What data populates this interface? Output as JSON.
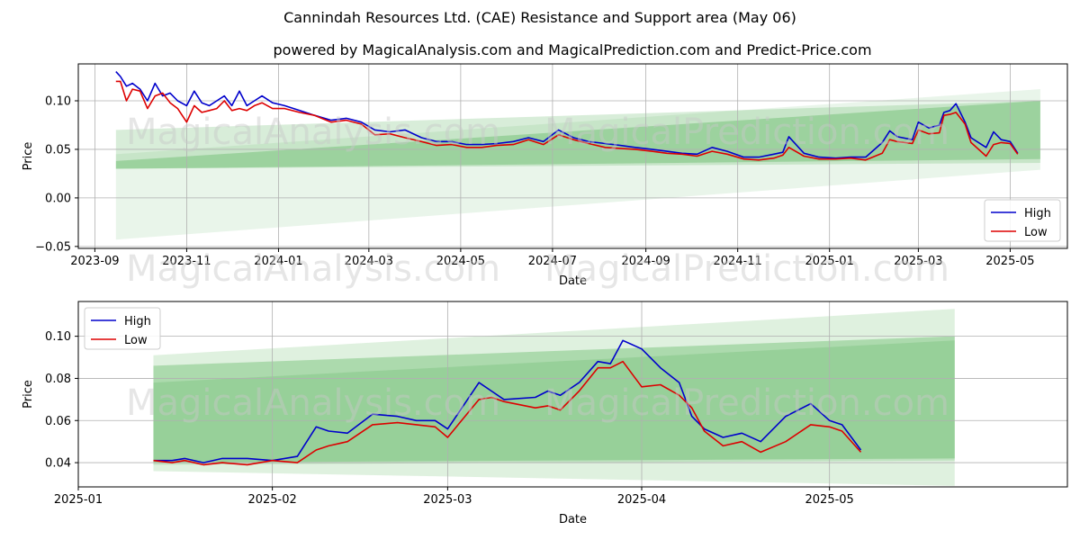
{
  "header": {
    "title": "Cannindah Resources Ltd. (CAE) Resistance and Support area (May 06)",
    "subtitle": "powered by MagicalAnalysis.com and MagicalPrediction.com and Predict-Price.com"
  },
  "watermarks": [
    "MagicalAnalysis.com",
    "MagicalPrediction.com"
  ],
  "colors": {
    "high": "#0000cc",
    "low": "#dd0000",
    "band": "#4caf50"
  },
  "chart_data": [
    {
      "type": "line",
      "xlabel": "Date",
      "ylabel": "Price",
      "grid": true,
      "legend": "bottom-right",
      "ylim": [
        -0.052,
        0.138
      ],
      "xlim": [
        "2023-08-21",
        "2025-06-08"
      ],
      "x_ticks": [
        "2023-09",
        "2023-11",
        "2024-01",
        "2024-03",
        "2024-05",
        "2024-07",
        "2024-09",
        "2024-11",
        "2025-01",
        "2025-03",
        "2025-05"
      ],
      "x_tick_dates": [
        "2023-09-01",
        "2023-11-01",
        "2024-01-01",
        "2024-03-01",
        "2024-05-01",
        "2024-07-01",
        "2024-09-01",
        "2024-11-01",
        "2025-01-01",
        "2025-03-01",
        "2025-05-01"
      ],
      "y_ticks": [
        -0.05,
        0.0,
        0.05,
        0.1
      ],
      "y_tick_labels": [
        "−0.05",
        "0.00",
        "0.05",
        "0.10"
      ],
      "bands": [
        {
          "x": [
            "2023-09-15",
            "2025-05-21"
          ],
          "upper": [
            0.045,
            0.112
          ],
          "lower": [
            -0.043,
            0.029
          ],
          "opacity": 0.12
        },
        {
          "x": [
            "2023-09-15",
            "2025-05-21"
          ],
          "upper": [
            0.07,
            0.1
          ],
          "lower": [
            0.03,
            0.036
          ],
          "opacity": 0.22
        },
        {
          "x": [
            "2023-09-15",
            "2025-05-21"
          ],
          "upper": [
            0.038,
            0.1
          ],
          "lower": [
            0.03,
            0.04
          ],
          "opacity": 0.35
        }
      ],
      "series": [
        {
          "name": "High",
          "x": [
            "2023-09-15",
            "2023-09-18",
            "2023-09-22",
            "2023-09-26",
            "2023-10-01",
            "2023-10-06",
            "2023-10-11",
            "2023-10-16",
            "2023-10-21",
            "2023-10-26",
            "2023-11-01",
            "2023-11-06",
            "2023-11-11",
            "2023-11-16",
            "2023-11-21",
            "2023-11-26",
            "2023-12-01",
            "2023-12-06",
            "2023-12-11",
            "2023-12-16",
            "2023-12-21",
            "2023-12-28",
            "2024-01-05",
            "2024-01-15",
            "2024-01-25",
            "2024-02-05",
            "2024-02-15",
            "2024-02-25",
            "2024-03-05",
            "2024-03-15",
            "2024-03-25",
            "2024-04-05",
            "2024-04-15",
            "2024-04-25",
            "2024-05-05",
            "2024-05-15",
            "2024-05-25",
            "2024-06-05",
            "2024-06-15",
            "2024-06-25",
            "2024-07-05",
            "2024-07-15",
            "2024-07-25",
            "2024-08-05",
            "2024-08-15",
            "2024-08-25",
            "2024-09-05",
            "2024-09-15",
            "2024-09-25",
            "2024-10-05",
            "2024-10-15",
            "2024-10-25",
            "2024-11-05",
            "2024-11-15",
            "2024-11-25",
            "2024-12-01",
            "2024-12-05",
            "2024-12-15",
            "2024-12-25",
            "2025-01-05",
            "2025-01-15",
            "2025-01-25",
            "2025-02-05",
            "2025-02-10",
            "2025-02-15",
            "2025-02-25",
            "2025-03-01",
            "2025-03-08",
            "2025-03-15",
            "2025-03-18",
            "2025-03-22",
            "2025-03-26",
            "2025-04-01",
            "2025-04-05",
            "2025-04-10",
            "2025-04-15",
            "2025-04-20",
            "2025-04-25",
            "2025-05-01",
            "2025-05-06"
          ],
          "y": [
            0.13,
            0.125,
            0.115,
            0.118,
            0.112,
            0.1,
            0.118,
            0.105,
            0.108,
            0.1,
            0.095,
            0.11,
            0.098,
            0.095,
            0.1,
            0.105,
            0.095,
            0.11,
            0.095,
            0.1,
            0.105,
            0.098,
            0.095,
            0.09,
            0.085,
            0.08,
            0.082,
            0.078,
            0.07,
            0.068,
            0.07,
            0.062,
            0.058,
            0.058,
            0.055,
            0.055,
            0.056,
            0.058,
            0.062,
            0.058,
            0.07,
            0.062,
            0.058,
            0.056,
            0.054,
            0.052,
            0.05,
            0.048,
            0.046,
            0.045,
            0.052,
            0.048,
            0.042,
            0.042,
            0.045,
            0.047,
            0.063,
            0.046,
            0.042,
            0.041,
            0.042,
            0.042,
            0.057,
            0.069,
            0.063,
            0.06,
            0.078,
            0.072,
            0.075,
            0.088,
            0.09,
            0.097,
            0.078,
            0.062,
            0.057,
            0.052,
            0.068,
            0.06,
            0.058,
            0.046
          ]
        },
        {
          "name": "Low",
          "x": [
            "2023-09-15",
            "2023-09-18",
            "2023-09-22",
            "2023-09-26",
            "2023-10-01",
            "2023-10-06",
            "2023-10-11",
            "2023-10-16",
            "2023-10-21",
            "2023-10-26",
            "2023-11-01",
            "2023-11-06",
            "2023-11-11",
            "2023-11-16",
            "2023-11-21",
            "2023-11-26",
            "2023-12-01",
            "2023-12-06",
            "2023-12-11",
            "2023-12-16",
            "2023-12-21",
            "2023-12-28",
            "2024-01-05",
            "2024-01-15",
            "2024-01-25",
            "2024-02-05",
            "2024-02-15",
            "2024-02-25",
            "2024-03-05",
            "2024-03-15",
            "2024-03-25",
            "2024-04-05",
            "2024-04-15",
            "2024-04-25",
            "2024-05-05",
            "2024-05-15",
            "2024-05-25",
            "2024-06-05",
            "2024-06-15",
            "2024-06-25",
            "2024-07-05",
            "2024-07-15",
            "2024-07-25",
            "2024-08-05",
            "2024-08-15",
            "2024-08-25",
            "2024-09-05",
            "2024-09-15",
            "2024-09-25",
            "2024-10-05",
            "2024-10-15",
            "2024-10-25",
            "2024-11-05",
            "2024-11-15",
            "2024-11-25",
            "2024-12-01",
            "2024-12-05",
            "2024-12-15",
            "2024-12-25",
            "2025-01-05",
            "2025-01-15",
            "2025-01-25",
            "2025-02-05",
            "2025-02-10",
            "2025-02-15",
            "2025-02-25",
            "2025-03-01",
            "2025-03-08",
            "2025-03-15",
            "2025-03-18",
            "2025-03-22",
            "2025-03-26",
            "2025-04-01",
            "2025-04-05",
            "2025-04-10",
            "2025-04-15",
            "2025-04-20",
            "2025-04-25",
            "2025-05-01",
            "2025-05-06"
          ],
          "y": [
            0.12,
            0.12,
            0.1,
            0.112,
            0.11,
            0.092,
            0.105,
            0.108,
            0.098,
            0.092,
            0.078,
            0.095,
            0.088,
            0.09,
            0.092,
            0.1,
            0.09,
            0.092,
            0.09,
            0.095,
            0.098,
            0.092,
            0.092,
            0.088,
            0.085,
            0.078,
            0.08,
            0.076,
            0.065,
            0.066,
            0.062,
            0.058,
            0.054,
            0.055,
            0.052,
            0.052,
            0.054,
            0.055,
            0.06,
            0.055,
            0.065,
            0.06,
            0.056,
            0.052,
            0.051,
            0.05,
            0.048,
            0.046,
            0.045,
            0.043,
            0.048,
            0.045,
            0.04,
            0.039,
            0.041,
            0.044,
            0.052,
            0.043,
            0.04,
            0.04,
            0.041,
            0.039,
            0.046,
            0.06,
            0.058,
            0.056,
            0.07,
            0.066,
            0.067,
            0.085,
            0.086,
            0.088,
            0.076,
            0.057,
            0.05,
            0.043,
            0.055,
            0.057,
            0.056,
            0.045
          ]
        }
      ]
    },
    {
      "type": "line",
      "xlabel": "Date",
      "ylabel": "Price",
      "grid": true,
      "legend": "top-left",
      "ylim": [
        0.0285,
        0.1165
      ],
      "xlim": [
        "2025-01-01",
        "2025-06-08"
      ],
      "x_ticks": [
        "2025-01",
        "2025-02",
        "2025-03",
        "2025-04",
        "2025-05"
      ],
      "x_tick_dates": [
        "2025-01-01",
        "2025-02-01",
        "2025-03-01",
        "2025-04-01",
        "2025-05-01"
      ],
      "y_ticks": [
        0.04,
        0.06,
        0.08,
        0.1
      ],
      "y_tick_labels": [
        "0.04",
        "0.06",
        "0.08",
        "0.10"
      ],
      "bands": [
        {
          "x": [
            "2025-01-13",
            "2025-05-21"
          ],
          "upper": [
            0.091,
            0.113
          ],
          "lower": [
            0.036,
            0.029
          ],
          "opacity": 0.18
        },
        {
          "x": [
            "2025-01-13",
            "2025-05-21"
          ],
          "upper": [
            0.078,
            0.098
          ],
          "lower": [
            0.039,
            0.041
          ],
          "opacity": 0.22
        },
        {
          "x": [
            "2025-01-13",
            "2025-05-21"
          ],
          "upper": [
            0.086,
            0.1
          ],
          "lower": [
            0.04,
            0.042
          ],
          "opacity": 0.35
        }
      ],
      "series": [
        {
          "name": "High",
          "x": [
            "2025-01-13",
            "2025-01-16",
            "2025-01-18",
            "2025-01-21",
            "2025-01-24",
            "2025-01-28",
            "2025-02-01",
            "2025-02-05",
            "2025-02-08",
            "2025-02-10",
            "2025-02-13",
            "2025-02-17",
            "2025-02-21",
            "2025-02-24",
            "2025-02-27",
            "2025-03-01",
            "2025-03-06",
            "2025-03-08",
            "2025-03-10",
            "2025-03-15",
            "2025-03-17",
            "2025-03-19",
            "2025-03-22",
            "2025-03-25",
            "2025-03-27",
            "2025-03-29",
            "2025-04-01",
            "2025-04-04",
            "2025-04-07",
            "2025-04-09",
            "2025-04-11",
            "2025-04-14",
            "2025-04-17",
            "2025-04-20",
            "2025-04-24",
            "2025-04-28",
            "2025-05-01",
            "2025-05-02",
            "2025-05-03",
            "2025-05-06"
          ],
          "y": [
            0.041,
            0.041,
            0.042,
            0.04,
            0.042,
            0.042,
            0.041,
            0.043,
            0.057,
            0.055,
            0.054,
            0.063,
            0.062,
            0.06,
            0.06,
            0.056,
            0.078,
            0.074,
            0.07,
            0.071,
            0.074,
            0.072,
            0.078,
            0.088,
            0.087,
            0.098,
            0.094,
            0.085,
            0.078,
            0.062,
            0.056,
            0.052,
            0.054,
            0.05,
            0.062,
            0.068,
            0.06,
            0.059,
            0.058,
            0.046
          ]
        },
        {
          "name": "Low",
          "x": [
            "2025-01-13",
            "2025-01-16",
            "2025-01-18",
            "2025-01-21",
            "2025-01-24",
            "2025-01-28",
            "2025-02-01",
            "2025-02-05",
            "2025-02-08",
            "2025-02-10",
            "2025-02-13",
            "2025-02-17",
            "2025-02-21",
            "2025-02-24",
            "2025-02-27",
            "2025-03-01",
            "2025-03-06",
            "2025-03-08",
            "2025-03-10",
            "2025-03-15",
            "2025-03-17",
            "2025-03-19",
            "2025-03-22",
            "2025-03-25",
            "2025-03-27",
            "2025-03-29",
            "2025-04-01",
            "2025-04-04",
            "2025-04-07",
            "2025-04-09",
            "2025-04-11",
            "2025-04-14",
            "2025-04-17",
            "2025-04-20",
            "2025-04-24",
            "2025-04-28",
            "2025-05-01",
            "2025-05-02",
            "2025-05-03",
            "2025-05-06"
          ],
          "y": [
            0.041,
            0.04,
            0.041,
            0.039,
            0.04,
            0.039,
            0.041,
            0.04,
            0.046,
            0.048,
            0.05,
            0.058,
            0.059,
            0.058,
            0.057,
            0.052,
            0.07,
            0.071,
            0.069,
            0.066,
            0.067,
            0.065,
            0.074,
            0.085,
            0.085,
            0.088,
            0.076,
            0.077,
            0.072,
            0.066,
            0.055,
            0.048,
            0.05,
            0.045,
            0.05,
            0.058,
            0.057,
            0.056,
            0.055,
            0.045
          ]
        }
      ]
    }
  ]
}
